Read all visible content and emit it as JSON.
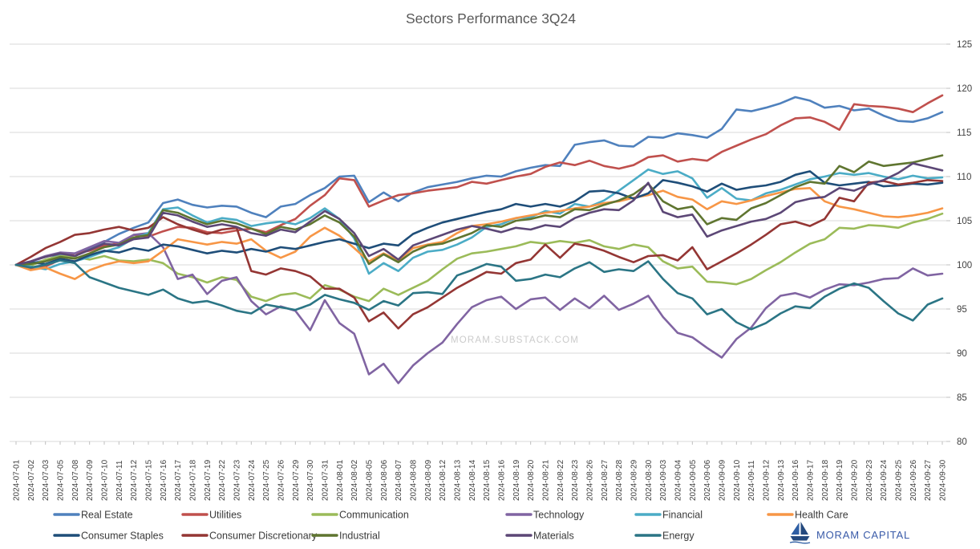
{
  "title": "Sectors Performance 3Q24",
  "watermark": "MORAM.SUBSTACK.COM",
  "logo": {
    "text": "MORAM CAPITAL",
    "color": "#3a5ba9",
    "boat_color": "#2e5ea4"
  },
  "colors": {
    "grid": "#d9d9d9",
    "tick": "#bfbfbf",
    "axis_text": "#404040",
    "title_text": "#595959",
    "legend_text": "#3a3a3a",
    "watermark_text": "#cbcbcb"
  },
  "chart_data": {
    "type": "line",
    "title": "Sectors Performance 3Q24",
    "xlabel": "",
    "ylabel": "",
    "ylim": [
      80,
      125
    ],
    "ytick_step": 5,
    "grid": true,
    "axis_side": "right",
    "legend_position": "bottom",
    "x": [
      "2024-07-01",
      "2024-07-02",
      "2024-07-03",
      "2024-07-05",
      "2024-07-08",
      "2024-07-09",
      "2024-07-10",
      "2024-07-11",
      "2024-07-12",
      "2024-07-15",
      "2024-07-16",
      "2024-07-17",
      "2024-07-18",
      "2024-07-19",
      "2024-07-22",
      "2024-07-23",
      "2024-07-24",
      "2024-07-25",
      "2024-07-26",
      "2024-07-29",
      "2024-07-30",
      "2024-07-31",
      "2024-08-01",
      "2024-08-02",
      "2024-08-05",
      "2024-08-06",
      "2024-08-07",
      "2024-08-08",
      "2024-08-09",
      "2024-08-12",
      "2024-08-13",
      "2024-08-14",
      "2024-08-15",
      "2024-08-16",
      "2024-08-19",
      "2024-08-20",
      "2024-08-21",
      "2024-08-22",
      "2024-08-23",
      "2024-08-26",
      "2024-08-27",
      "2024-08-28",
      "2024-08-29",
      "2024-08-30",
      "2024-09-03",
      "2024-09-04",
      "2024-09-05",
      "2024-09-06",
      "2024-09-09",
      "2024-09-10",
      "2024-09-11",
      "2024-09-12",
      "2024-09-13",
      "2024-09-16",
      "2024-09-17",
      "2024-09-18",
      "2024-09-19",
      "2024-09-20",
      "2024-09-23",
      "2024-09-24",
      "2024-09-25",
      "2024-09-26",
      "2024-09-27",
      "2024-09-30"
    ],
    "series": [
      {
        "name": "Real Estate",
        "color": "#4f81bd",
        "values": [
          100,
          100.2,
          100.5,
          101.2,
          101.0,
          101.8,
          102.6,
          103.5,
          104.2,
          104.8,
          107.0,
          107.4,
          106.8,
          106.5,
          106.7,
          106.6,
          105.9,
          105.4,
          106.6,
          106.9,
          107.9,
          108.7,
          110.0,
          110.1,
          107.1,
          108.2,
          107.2,
          108.2,
          108.8,
          109.1,
          109.4,
          109.8,
          110.1,
          110.0,
          110.6,
          111.0,
          111.3,
          111.2,
          113.6,
          113.9,
          114.1,
          113.5,
          113.4,
          114.5,
          114.4,
          114.9,
          114.7,
          114.4,
          115.4,
          117.6,
          117.4,
          117.8,
          118.3,
          119.0,
          118.6,
          117.8,
          118.0,
          117.5,
          117.7,
          116.9,
          116.3,
          116.2,
          116.6,
          117.3
        ]
      },
      {
        "name": "Utilities",
        "color": "#c0504d",
        "values": [
          100,
          99.6,
          99.8,
          100.6,
          101.3,
          101.6,
          102.2,
          102.4,
          103.4,
          103.2,
          103.8,
          104.3,
          104.2,
          103.7,
          103.6,
          103.9,
          104.1,
          103.7,
          104.5,
          105.2,
          106.7,
          107.9,
          109.8,
          109.6,
          106.6,
          107.3,
          107.9,
          108.1,
          108.4,
          108.6,
          108.8,
          109.4,
          109.2,
          109.6,
          110.0,
          110.3,
          111.1,
          111.6,
          111.3,
          111.8,
          111.2,
          110.9,
          111.3,
          112.2,
          112.4,
          111.7,
          112.0,
          111.8,
          112.8,
          113.5,
          114.2,
          114.8,
          115.8,
          116.6,
          116.7,
          116.2,
          115.3,
          118.2,
          118.0,
          117.9,
          117.7,
          117.3,
          118.3,
          119.2
        ]
      },
      {
        "name": "Communication",
        "color": "#9bbb59",
        "values": [
          100,
          99.9,
          100.6,
          101.0,
          100.9,
          100.6,
          101.0,
          100.5,
          100.4,
          100.6,
          100.2,
          99.0,
          98.6,
          98.0,
          98.6,
          98.3,
          96.4,
          95.9,
          96.6,
          96.8,
          96.2,
          97.7,
          97.2,
          96.4,
          95.9,
          97.3,
          96.6,
          97.4,
          98.2,
          99.5,
          100.7,
          101.3,
          101.5,
          101.8,
          102.1,
          102.6,
          102.4,
          102.7,
          102.5,
          102.8,
          102.1,
          101.8,
          102.3,
          102.0,
          100.4,
          99.6,
          99.8,
          98.1,
          98.0,
          97.8,
          98.4,
          99.4,
          100.3,
          101.4,
          102.4,
          102.9,
          104.2,
          104.1,
          104.5,
          104.4,
          104.2,
          104.8,
          105.2,
          105.8
        ]
      },
      {
        "name": "Technology",
        "color": "#8064a2",
        "values": [
          100,
          100.4,
          101.0,
          101.4,
          101.3,
          102.0,
          102.7,
          102.5,
          103.4,
          103.6,
          102.0,
          98.4,
          98.9,
          96.7,
          98.2,
          98.6,
          95.9,
          94.4,
          95.3,
          94.8,
          92.6,
          96.0,
          93.4,
          92.2,
          87.6,
          88.8,
          86.6,
          88.6,
          90.0,
          91.2,
          93.3,
          95.2,
          96.0,
          96.4,
          95.0,
          96.1,
          96.3,
          94.9,
          96.2,
          95.1,
          96.5,
          94.9,
          95.6,
          96.5,
          94.1,
          92.3,
          91.8,
          90.6,
          89.5,
          91.6,
          92.9,
          95.1,
          96.5,
          96.8,
          96.3,
          97.2,
          97.8,
          97.7,
          98.0,
          98.4,
          98.5,
          99.6,
          98.8,
          99.0
        ]
      },
      {
        "name": "Financial",
        "color": "#4bacc6",
        "values": [
          100,
          99.8,
          99.5,
          100.1,
          100.4,
          100.9,
          101.5,
          102.0,
          103.0,
          103.6,
          106.3,
          106.5,
          105.6,
          104.8,
          105.3,
          105.1,
          104.4,
          104.7,
          104.9,
          104.6,
          105.3,
          106.4,
          105.2,
          103.0,
          99.0,
          100.2,
          99.3,
          100.8,
          101.5,
          101.7,
          102.3,
          103.1,
          104.3,
          104.6,
          105.3,
          105.4,
          106.1,
          105.8,
          106.9,
          106.6,
          107.3,
          108.4,
          109.6,
          110.8,
          110.3,
          110.6,
          109.8,
          107.6,
          108.7,
          107.5,
          107.3,
          108.1,
          108.5,
          109.1,
          109.7,
          110.0,
          110.4,
          110.2,
          110.4,
          110.0,
          109.7,
          110.1,
          109.8,
          109.9
        ]
      },
      {
        "name": "Health Care",
        "color": "#f79646",
        "values": [
          100,
          99.4,
          99.7,
          99.0,
          98.4,
          99.4,
          100.0,
          100.4,
          100.2,
          100.4,
          101.6,
          102.9,
          102.6,
          102.3,
          102.6,
          102.4,
          102.9,
          101.6,
          100.8,
          101.5,
          103.2,
          104.2,
          103.3,
          101.9,
          100.4,
          101.3,
          100.5,
          101.9,
          102.3,
          102.6,
          103.6,
          104.4,
          104.6,
          104.9,
          105.3,
          105.6,
          105.9,
          106.1,
          106.4,
          106.6,
          107.0,
          107.2,
          107.6,
          107.9,
          108.4,
          107.7,
          107.4,
          106.3,
          107.2,
          106.9,
          107.3,
          107.8,
          108.2,
          108.6,
          108.7,
          107.2,
          106.6,
          106.3,
          105.9,
          105.5,
          105.4,
          105.6,
          105.9,
          106.4
        ]
      },
      {
        "name": "Consumer Staples",
        "color": "#1f4e79",
        "values": [
          100,
          100.3,
          100.1,
          100.7,
          100.4,
          101.1,
          101.6,
          101.4,
          101.9,
          101.6,
          102.3,
          102.1,
          101.7,
          101.3,
          101.6,
          101.4,
          101.8,
          101.5,
          102.0,
          101.8,
          102.2,
          102.6,
          102.9,
          102.4,
          101.9,
          102.4,
          102.2,
          103.5,
          104.2,
          104.8,
          105.2,
          105.6,
          106.0,
          106.3,
          106.9,
          106.6,
          106.9,
          106.6,
          107.2,
          108.3,
          108.4,
          108.1,
          107.5,
          108.1,
          109.6,
          109.3,
          108.9,
          108.3,
          109.2,
          108.5,
          108.8,
          109.0,
          109.4,
          110.2,
          110.6,
          109.3,
          109.0,
          109.2,
          109.4,
          108.9,
          109.0,
          109.2,
          109.1,
          109.3
        ]
      },
      {
        "name": "Consumer Discretionary",
        "color": "#943634",
        "values": [
          100,
          100.9,
          101.9,
          102.6,
          103.4,
          103.6,
          104.0,
          104.3,
          103.9,
          104.2,
          105.4,
          104.6,
          104.0,
          103.5,
          104.0,
          104.2,
          99.3,
          98.9,
          99.6,
          99.3,
          98.7,
          97.3,
          97.3,
          96.3,
          93.6,
          94.6,
          92.8,
          94.4,
          95.2,
          96.3,
          97.4,
          98.3,
          99.2,
          99.0,
          100.2,
          100.6,
          102.3,
          100.8,
          102.4,
          102.1,
          101.6,
          100.9,
          100.3,
          101.0,
          101.1,
          100.5,
          102.0,
          99.5,
          100.4,
          101.3,
          102.3,
          103.4,
          104.6,
          104.9,
          104.4,
          105.2,
          107.6,
          107.2,
          109.3,
          109.5,
          109.1,
          109.3,
          109.6,
          109.5
        ]
      },
      {
        "name": "Industrial",
        "color": "#5f7530",
        "values": [
          100,
          100.1,
          100.4,
          100.9,
          100.7,
          101.3,
          102.0,
          102.3,
          103.1,
          103.4,
          106.2,
          105.9,
          105.2,
          104.6,
          105.0,
          104.7,
          104.1,
          103.5,
          104.3,
          104.0,
          104.6,
          105.6,
          104.8,
          103.2,
          100.1,
          101.2,
          100.3,
          101.5,
          102.2,
          102.4,
          103.0,
          103.6,
          104.5,
          104.3,
          105.0,
          105.2,
          105.6,
          105.4,
          106.3,
          106.2,
          106.8,
          107.3,
          108.0,
          109.2,
          107.2,
          106.3,
          106.6,
          104.6,
          105.3,
          105.1,
          106.4,
          107.0,
          107.9,
          108.8,
          109.4,
          109.2,
          111.2,
          110.5,
          111.7,
          111.2,
          111.4,
          111.6,
          112.0,
          112.4
        ]
      },
      {
        "name": "Materials",
        "color": "#5c4776",
        "values": [
          100,
          100.4,
          100.9,
          101.3,
          101.0,
          101.7,
          102.4,
          102.2,
          102.9,
          103.1,
          105.9,
          105.6,
          104.9,
          104.3,
          104.6,
          104.3,
          103.6,
          103.3,
          104.0,
          103.7,
          104.9,
          106.1,
          105.2,
          103.6,
          101.0,
          101.8,
          100.6,
          102.2,
          102.8,
          103.4,
          104.0,
          104.4,
          104.1,
          103.7,
          104.2,
          104.0,
          104.5,
          104.3,
          105.3,
          105.9,
          106.3,
          106.2,
          107.3,
          109.3,
          106.0,
          105.4,
          105.7,
          103.2,
          103.9,
          104.4,
          104.9,
          105.2,
          105.9,
          107.1,
          107.5,
          107.7,
          108.7,
          108.4,
          109.1,
          109.6,
          110.4,
          111.5,
          111.1,
          110.7
        ]
      },
      {
        "name": "Energy",
        "color": "#2b7585",
        "values": [
          100,
          99.7,
          100.0,
          100.5,
          100.2,
          98.6,
          98.0,
          97.4,
          97.0,
          96.6,
          97.2,
          96.2,
          95.7,
          95.9,
          95.4,
          94.8,
          94.5,
          95.5,
          95.2,
          94.9,
          95.5,
          96.6,
          96.1,
          95.7,
          94.9,
          95.9,
          95.4,
          96.8,
          96.9,
          96.7,
          98.8,
          99.4,
          100.1,
          99.8,
          98.2,
          98.4,
          98.9,
          98.6,
          99.6,
          100.3,
          99.2,
          99.5,
          99.3,
          100.4,
          98.4,
          96.8,
          96.2,
          94.4,
          95.0,
          93.5,
          92.7,
          93.4,
          94.5,
          95.3,
          95.1,
          96.4,
          97.3,
          97.9,
          97.4,
          95.9,
          94.5,
          93.7,
          95.5,
          96.2
        ]
      }
    ]
  }
}
